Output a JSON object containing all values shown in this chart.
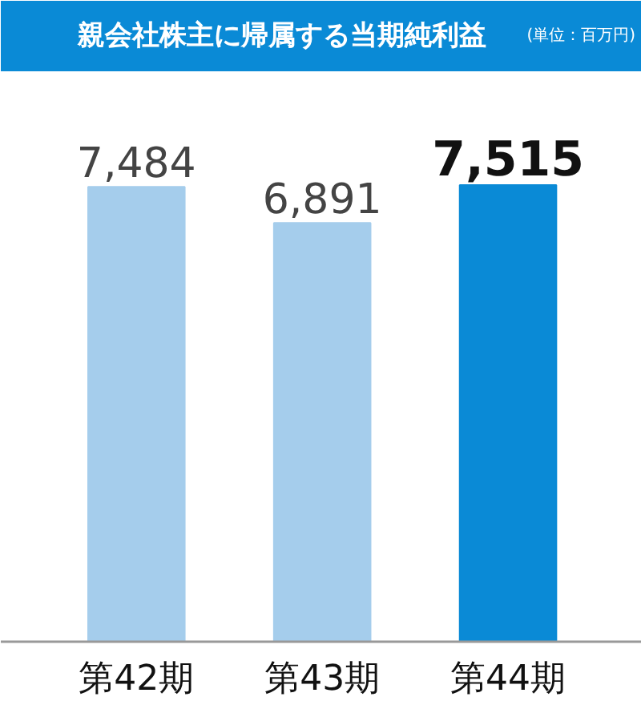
{
  "chart_data": {
    "type": "bar",
    "title": "親会社株主に帰属する当期純利益",
    "subtitle": "(単位：百万円)",
    "categories": [
      "第42期",
      "第43期",
      "第44期"
    ],
    "values": [
      7484,
      6891,
      7515
    ],
    "colors": [
      "#a5cdec",
      "#a5cdec",
      "#0a8ad6"
    ],
    "value_labels": [
      "7,484",
      "6,891",
      "7,515"
    ]
  }
}
